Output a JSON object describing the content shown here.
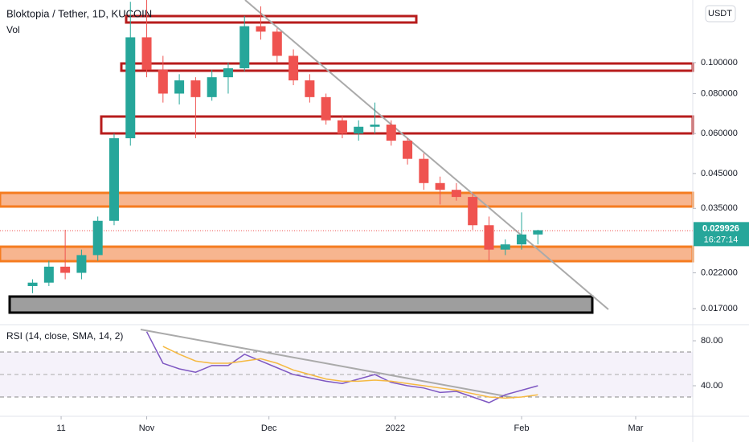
{
  "chart_data": [
    {
      "type": "candlestick",
      "title": "Bloktopia / Tether, 1D, KUCOIN",
      "subtitle": "Vol",
      "currency": "USDT",
      "log_scale": true,
      "xlim": [
        -36,
        134
      ],
      "ylim": [
        0.0155,
        0.157
      ],
      "yticks": [
        {
          "value": 0.1,
          "label": "0.100000"
        },
        {
          "value": 0.08,
          "label": "0.080000"
        },
        {
          "value": 0.06,
          "label": "0.060000"
        },
        {
          "value": 0.045,
          "label": "0.045000"
        },
        {
          "value": 0.035,
          "label": "0.035000"
        },
        {
          "value": 0.022,
          "label": "0.022000"
        },
        {
          "value": 0.017,
          "label": "0.017000"
        }
      ],
      "x": [
        -28,
        -24,
        -20,
        -16,
        -12,
        -8,
        -4,
        0,
        4,
        8,
        12,
        16,
        20,
        24,
        28,
        32,
        36,
        40,
        44,
        48,
        52,
        56,
        60,
        64,
        68,
        72,
        76,
        80,
        84,
        88,
        92,
        96
      ],
      "open": [
        0.02,
        0.0205,
        0.023,
        0.022,
        0.025,
        0.032,
        0.058,
        0.12,
        0.095,
        0.08,
        0.088,
        0.078,
        0.09,
        0.096,
        0.13,
        0.125,
        0.105,
        0.088,
        0.078,
        0.066,
        0.06,
        0.063,
        0.064,
        0.057,
        0.05,
        0.042,
        0.04,
        0.038,
        0.031,
        0.026,
        0.027,
        0.029
      ],
      "high": [
        0.021,
        0.024,
        0.03,
        0.026,
        0.033,
        0.06,
        0.155,
        0.16,
        0.105,
        0.092,
        0.09,
        0.095,
        0.1,
        0.14,
        0.15,
        0.128,
        0.11,
        0.092,
        0.08,
        0.068,
        0.066,
        0.075,
        0.066,
        0.058,
        0.052,
        0.044,
        0.042,
        0.039,
        0.033,
        0.028,
        0.034,
        0.03
      ],
      "low": [
        0.019,
        0.02,
        0.021,
        0.021,
        0.024,
        0.031,
        0.055,
        0.09,
        0.075,
        0.074,
        0.058,
        0.076,
        0.08,
        0.094,
        0.118,
        0.1,
        0.085,
        0.075,
        0.064,
        0.058,
        0.057,
        0.06,
        0.055,
        0.048,
        0.04,
        0.036,
        0.037,
        0.03,
        0.024,
        0.025,
        0.026,
        0.027
      ],
      "close": [
        0.0205,
        0.023,
        0.022,
        0.025,
        0.032,
        0.058,
        0.12,
        0.095,
        0.08,
        0.088,
        0.078,
        0.09,
        0.096,
        0.13,
        0.125,
        0.105,
        0.088,
        0.078,
        0.066,
        0.06,
        0.063,
        0.064,
        0.057,
        0.05,
        0.042,
        0.04,
        0.038,
        0.031,
        0.026,
        0.027,
        0.029,
        0.0299
      ],
      "up_color": "#26a69a",
      "down_color": "#ef5350",
      "last_price": {
        "value": 0.029926,
        "label": "0.029926"
      },
      "countdown": "16:27:14"
    },
    {
      "type": "line",
      "title": "RSI (14, close, SMA, 14, 2)",
      "xlim": [
        -36,
        134
      ],
      "ylim": [
        15,
        93.6
      ],
      "yticks": [
        {
          "value": 80,
          "label": "80.00"
        },
        {
          "value": 40,
          "label": "40.00"
        }
      ],
      "xticks": [
        {
          "value": -21,
          "label": "11"
        },
        {
          "value": 0,
          "label": "Nov"
        },
        {
          "value": 30,
          "label": "Dec"
        },
        {
          "value": 61,
          "label": "2022"
        },
        {
          "value": 92,
          "label": "Feb"
        },
        {
          "value": 120,
          "label": "Mar"
        }
      ],
      "x": [
        -28,
        -24,
        -20,
        -16,
        -12,
        -8,
        -4,
        0,
        4,
        8,
        12,
        16,
        20,
        24,
        28,
        32,
        36,
        40,
        44,
        48,
        52,
        56,
        60,
        64,
        68,
        72,
        76,
        80,
        84,
        88,
        92,
        96
      ],
      "series": [
        {
          "name": "RSI",
          "color": "#7e57c2",
          "values": [
            null,
            null,
            null,
            null,
            null,
            null,
            null,
            88,
            60,
            55,
            52,
            58,
            58,
            68,
            62,
            56,
            50,
            47,
            44,
            42,
            46,
            50,
            43,
            40,
            38,
            34,
            35,
            30,
            25,
            32,
            36,
            40
          ]
        },
        {
          "name": "SMA",
          "color": "#f5b942",
          "values": [
            null,
            null,
            null,
            null,
            null,
            null,
            null,
            null,
            75,
            68,
            62,
            60,
            60,
            62,
            64,
            60,
            54,
            50,
            46,
            44,
            44,
            45,
            44,
            42,
            40,
            38,
            36,
            33,
            30,
            29,
            30,
            32
          ]
        }
      ]
    }
  ]
}
